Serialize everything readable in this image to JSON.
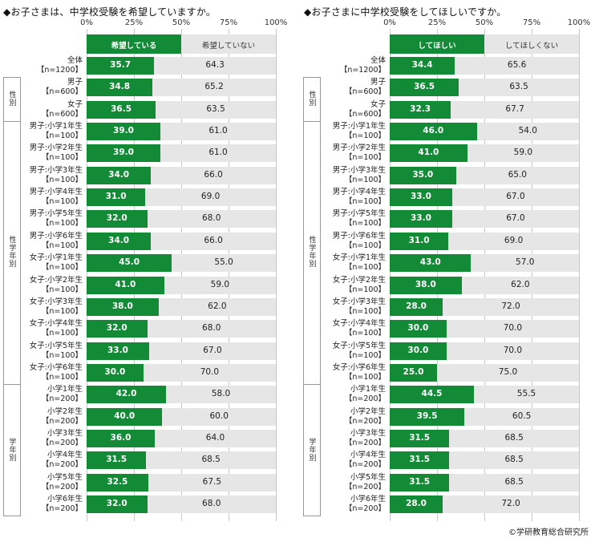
{
  "credit": "©学研教育総合研究所",
  "colors": {
    "bar_a": "#138a36",
    "bar_b": "#e6e6e6",
    "grid": "#c8c8c8"
  },
  "chart_data": [
    {
      "type": "bar",
      "orientation": "horizontal",
      "stacked": "100%",
      "title": "◆お子さまは、中学校受験を希望していますか。",
      "ticks": [
        "0%",
        "25%",
        "50%",
        "75%",
        "100%"
      ],
      "xlim": [
        0,
        100
      ],
      "legend": [
        "希望している",
        "希望していない"
      ],
      "groups": [
        {
          "label": "",
          "start": 0,
          "end": 0
        },
        {
          "label": "性別",
          "start": 1,
          "end": 2
        },
        {
          "label": "性学年別",
          "start": 3,
          "end": 14
        },
        {
          "label": "学年別",
          "start": 15,
          "end": 20
        }
      ],
      "categories": [
        [
          "全体",
          "【n=1200】"
        ],
        [
          "男子",
          "【n=600】"
        ],
        [
          "女子",
          "【n=600】"
        ],
        [
          "男子:小学1年生",
          "【n=100】"
        ],
        [
          "男子:小学2年生",
          "【n=100】"
        ],
        [
          "男子:小学3年生",
          "【n=100】"
        ],
        [
          "男子:小学4年生",
          "【n=100】"
        ],
        [
          "男子:小学5年生",
          "【n=100】"
        ],
        [
          "男子:小学6年生",
          "【n=100】"
        ],
        [
          "女子:小学1年生",
          "【n=100】"
        ],
        [
          "女子:小学2年生",
          "【n=100】"
        ],
        [
          "女子:小学3年生",
          "【n=100】"
        ],
        [
          "女子:小学4年生",
          "【n=100】"
        ],
        [
          "女子:小学5年生",
          "【n=100】"
        ],
        [
          "女子:小学6年生",
          "【n=100】"
        ],
        [
          "小学1年生",
          "【n=200】"
        ],
        [
          "小学2年生",
          "【n=200】"
        ],
        [
          "小学3年生",
          "【n=200】"
        ],
        [
          "小学4年生",
          "【n=200】"
        ],
        [
          "小学5年生",
          "【n=200】"
        ],
        [
          "小学6年生",
          "【n=200】"
        ]
      ],
      "series": [
        {
          "name": "希望している",
          "values": [
            "35.7",
            "34.8",
            "36.5",
            "39.0",
            "39.0",
            "34.0",
            "31.0",
            "32.0",
            "34.0",
            "45.0",
            "41.0",
            "38.0",
            "32.0",
            "33.0",
            "30.0",
            "42.0",
            "40.0",
            "36.0",
            "31.5",
            "32.5",
            "32.0"
          ]
        },
        {
          "name": "希望していない",
          "values": [
            "64.3",
            "65.2",
            "63.5",
            "61.0",
            "61.0",
            "66.0",
            "69.0",
            "68.0",
            "66.0",
            "55.0",
            "59.0",
            "62.0",
            "68.0",
            "67.0",
            "70.0",
            "58.0",
            "60.0",
            "64.0",
            "68.5",
            "67.5",
            "68.0"
          ]
        }
      ]
    },
    {
      "type": "bar",
      "orientation": "horizontal",
      "stacked": "100%",
      "title": "◆お子さまに中学校受験をしてほしいですか。",
      "ticks": [
        "0%",
        "25%",
        "50%",
        "75%",
        "100%"
      ],
      "xlim": [
        0,
        100
      ],
      "legend": [
        "してほしい",
        "してほしくない"
      ],
      "groups": [
        {
          "label": "",
          "start": 0,
          "end": 0
        },
        {
          "label": "性別",
          "start": 1,
          "end": 2
        },
        {
          "label": "性学年別",
          "start": 3,
          "end": 14
        },
        {
          "label": "学年別",
          "start": 15,
          "end": 20
        }
      ],
      "categories": [
        [
          "全体",
          "【n=1200】"
        ],
        [
          "男子",
          "【n=600】"
        ],
        [
          "女子",
          "【n=600】"
        ],
        [
          "男子:小学1年生",
          "【n=100】"
        ],
        [
          "男子:小学2年生",
          "【n=100】"
        ],
        [
          "男子:小学3年生",
          "【n=100】"
        ],
        [
          "男子:小学4年生",
          "【n=100】"
        ],
        [
          "男子:小学5年生",
          "【n=100】"
        ],
        [
          "男子:小学6年生",
          "【n=100】"
        ],
        [
          "女子:小学1年生",
          "【n=100】"
        ],
        [
          "女子:小学2年生",
          "【n=100】"
        ],
        [
          "女子:小学3年生",
          "【n=100】"
        ],
        [
          "女子:小学4年生",
          "【n=100】"
        ],
        [
          "女子:小学5年生",
          "【n=100】"
        ],
        [
          "女子:小学6年生",
          "【n=100】"
        ],
        [
          "小学1年生",
          "【n=200】"
        ],
        [
          "小学2年生",
          "【n=200】"
        ],
        [
          "小学3年生",
          "【n=200】"
        ],
        [
          "小学4年生",
          "【n=200】"
        ],
        [
          "小学5年生",
          "【n=200】"
        ],
        [
          "小学6年生",
          "【n=200】"
        ]
      ],
      "series": [
        {
          "name": "してほしい",
          "values": [
            "34.4",
            "36.5",
            "32.3",
            "46.0",
            "41.0",
            "35.0",
            "33.0",
            "33.0",
            "31.0",
            "43.0",
            "38.0",
            "28.0",
            "30.0",
            "30.0",
            "25.0",
            "44.5",
            "39.5",
            "31.5",
            "31.5",
            "31.5",
            "28.0"
          ]
        },
        {
          "name": "してほしくない",
          "values": [
            "65.6",
            "63.5",
            "67.7",
            "54.0",
            "59.0",
            "65.0",
            "67.0",
            "67.0",
            "69.0",
            "57.0",
            "62.0",
            "72.0",
            "70.0",
            "70.0",
            "75.0",
            "55.5",
            "60.5",
            "68.5",
            "68.5",
            "68.5",
            "72.0"
          ]
        }
      ]
    }
  ]
}
